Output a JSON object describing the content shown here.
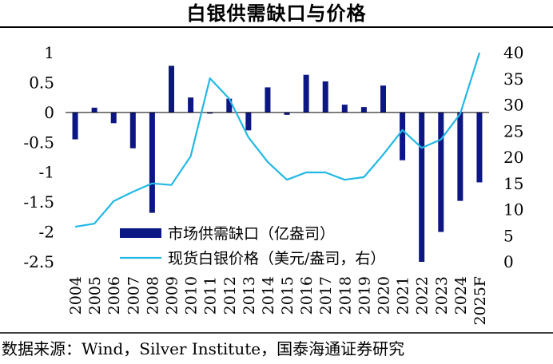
{
  "title": "白银供需缺口与价格",
  "source": "数据来源：Wind，Silver Institute，国泰海通证券研究",
  "colors": {
    "bar": "#0c1784",
    "line": "#22b8e6",
    "rule": "#000000"
  },
  "chart_data": {
    "type": "bar+line",
    "title": "白银供需缺口与价格",
    "categories": [
      "2004",
      "2005",
      "2006",
      "2007",
      "2008",
      "2009",
      "2010",
      "2011",
      "2012",
      "2013",
      "2014",
      "2015",
      "2016",
      "2017",
      "2018",
      "2019",
      "2020",
      "2021",
      "2022",
      "2023",
      "2024",
      "2025F"
    ],
    "series": [
      {
        "name": "市场供需缺口（亿盎司）",
        "type": "bar",
        "axis": "left",
        "values": [
          -0.45,
          0.08,
          -0.18,
          -0.6,
          -1.68,
          0.78,
          0.25,
          -0.02,
          0.23,
          -0.3,
          0.42,
          -0.04,
          0.63,
          0.52,
          0.13,
          0.09,
          0.45,
          -0.8,
          -2.5,
          -2.0,
          -1.48,
          -1.17
        ]
      },
      {
        "name": "现货白银价格（美元/盎司，右）",
        "type": "line",
        "axis": "right",
        "values": [
          6.7,
          7.3,
          11.6,
          13.4,
          15.0,
          14.7,
          20.2,
          35.1,
          31.2,
          23.8,
          19.1,
          15.7,
          17.1,
          17.1,
          15.7,
          16.2,
          20.5,
          25.2,
          21.8,
          23.4,
          28.3,
          40.0
        ]
      }
    ],
    "left_axis": {
      "ylim": [
        -2.5,
        1
      ],
      "ticks": [
        "1",
        "0.5",
        "0",
        "-0.5",
        "-1",
        "-1.5",
        "-2",
        "-2.5"
      ]
    },
    "right_axis": {
      "ylim": [
        0,
        40
      ],
      "ticks": [
        "40",
        "35",
        "30",
        "25",
        "20",
        "15",
        "10",
        "5",
        "0"
      ]
    },
    "legend": [
      {
        "label": "市场供需缺口（亿盎司）",
        "kind": "bar"
      },
      {
        "label": "现货白银价格（美元/盎司，右）",
        "kind": "line"
      }
    ],
    "legend_position": "bottom-left"
  }
}
